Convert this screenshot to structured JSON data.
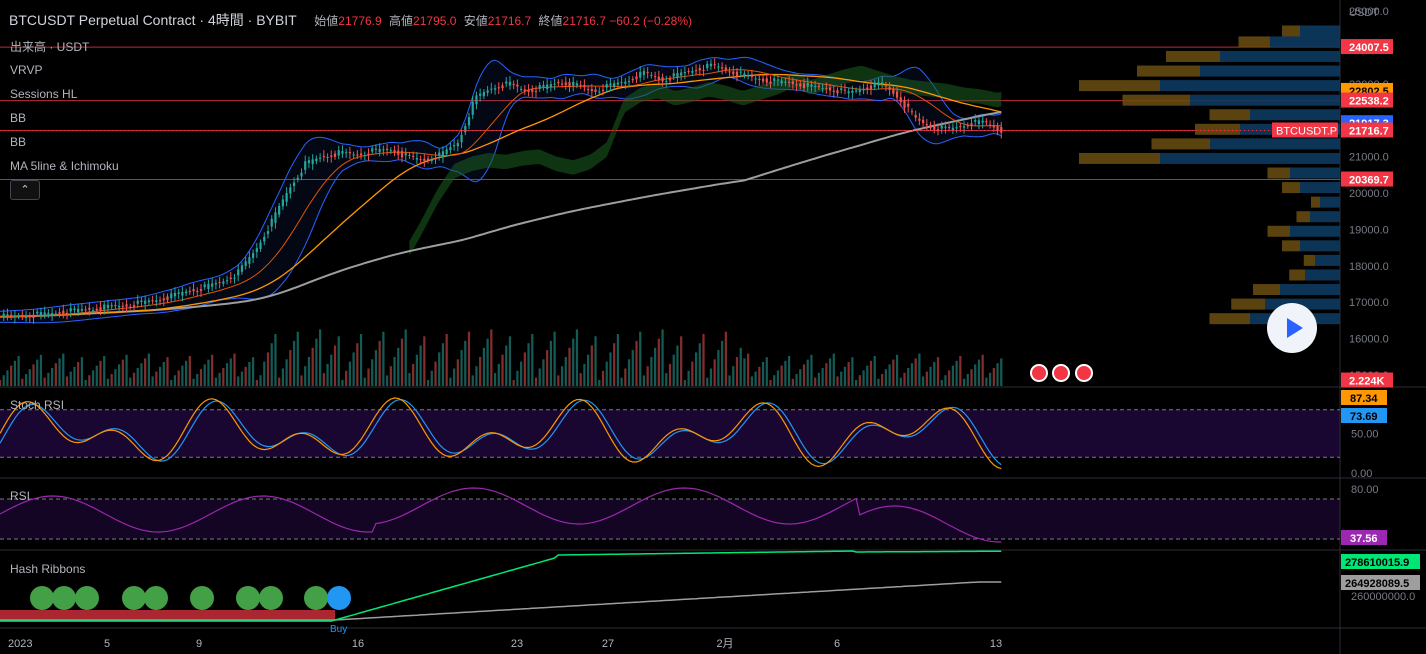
{
  "header": {
    "symbol": "BTCUSDT Perpetual Contract",
    "interval": "4時間",
    "exchange": "BYBIT",
    "open_label": "始値",
    "open": "21776.9",
    "high_label": "高値",
    "high": "21795.0",
    "low_label": "安値",
    "low": "21716.7",
    "close_label": "終値",
    "close": "21716.7",
    "change": "−60.2 (−0.28%)"
  },
  "indicators": [
    "出来高 · USDT",
    "VRVP",
    "Sessions HL",
    "BB",
    "BB",
    "MA 5line & Ichimoku"
  ],
  "collapse_label": "⌃",
  "price_axis": {
    "currency": "USDT",
    "ticks": [
      "25000.0",
      "24000.0",
      "23000.0",
      "22000.0",
      "21000.0",
      "20000.0",
      "19000.0",
      "18000.0",
      "17000.0",
      "16000.0",
      "15000.0"
    ]
  },
  "price_tags": [
    {
      "text": "24007.5",
      "bg": "#f23645",
      "fg": "#ffffff",
      "price": 24007.5
    },
    {
      "text": "22802.5",
      "bg": "#ff9800",
      "fg": "#000000",
      "price": 22802.5
    },
    {
      "text": "22538.2",
      "bg": "#f23645",
      "fg": "#ffffff",
      "price": 22538.2
    },
    {
      "text": "21917.3",
      "bg": "#2962ff",
      "fg": "#ffffff",
      "price": 21917.3
    },
    {
      "text": "21716.7",
      "bg": "#f23645",
      "fg": "#ffffff",
      "price": 21716.7
    },
    {
      "text": "20369.7",
      "bg": "#f23645",
      "fg": "#ffffff",
      "price": 20369.7
    },
    {
      "text": "2.224K",
      "bg": "#f23645",
      "fg": "#ffffff",
      "price": 14850
    }
  ],
  "symbol_tag": "BTCUSDT.P",
  "stoch": {
    "title": "Stoch RSI",
    "ticks": [
      "50.00",
      "0.00"
    ],
    "k_label": "87.34",
    "d_label": "73.69",
    "k_color": "#ff9800",
    "d_color": "#2196f3"
  },
  "rsi": {
    "title": "RSI",
    "ticks": [
      "80.00"
    ],
    "value_label": "37.56",
    "color": "#9c27b0"
  },
  "hash": {
    "title": "Hash Ribbons",
    "ticks": [
      "260000000.0"
    ],
    "fast_label": "278610015.9",
    "slow_label": "264928089.5",
    "buy_label": "Buy"
  },
  "time_axis": [
    "2023",
    "5",
    "9",
    "16",
    "23",
    "27",
    "2月",
    "6",
    "13"
  ],
  "chart_data": {
    "type": "line",
    "title": "BTCUSDT Perpetual Contract",
    "ylim": [
      14700,
      25300
    ],
    "x_domain": [
      0,
      270
    ],
    "key_levels": [
      24007.5,
      22538.2,
      21716.7,
      20369.7
    ],
    "series": [
      {
        "values": [
          16600,
          16620,
          16650,
          16700,
          16750,
          16800,
          16850,
          16900,
          16950,
          17050,
          17150,
          17300,
          17400,
          17550,
          17800,
          18400,
          19200,
          20100,
          20800,
          21000,
          21100,
          21050,
          21150,
          21200,
          21000,
          20900,
          21050,
          21400,
          22600,
          22900,
          23000,
          22800,
          22900,
          23050,
          22950,
          22800,
          22950,
          23100,
          23300,
          23100,
          23250,
          23400,
          23500,
          23350,
          23200,
          23100,
          23050,
          23000,
          22900,
          22850,
          22750,
          22900,
          23000,
          22600,
          22000,
          21800,
          21750,
          21900,
          21950,
          21716.7
        ]
      }
    ]
  }
}
